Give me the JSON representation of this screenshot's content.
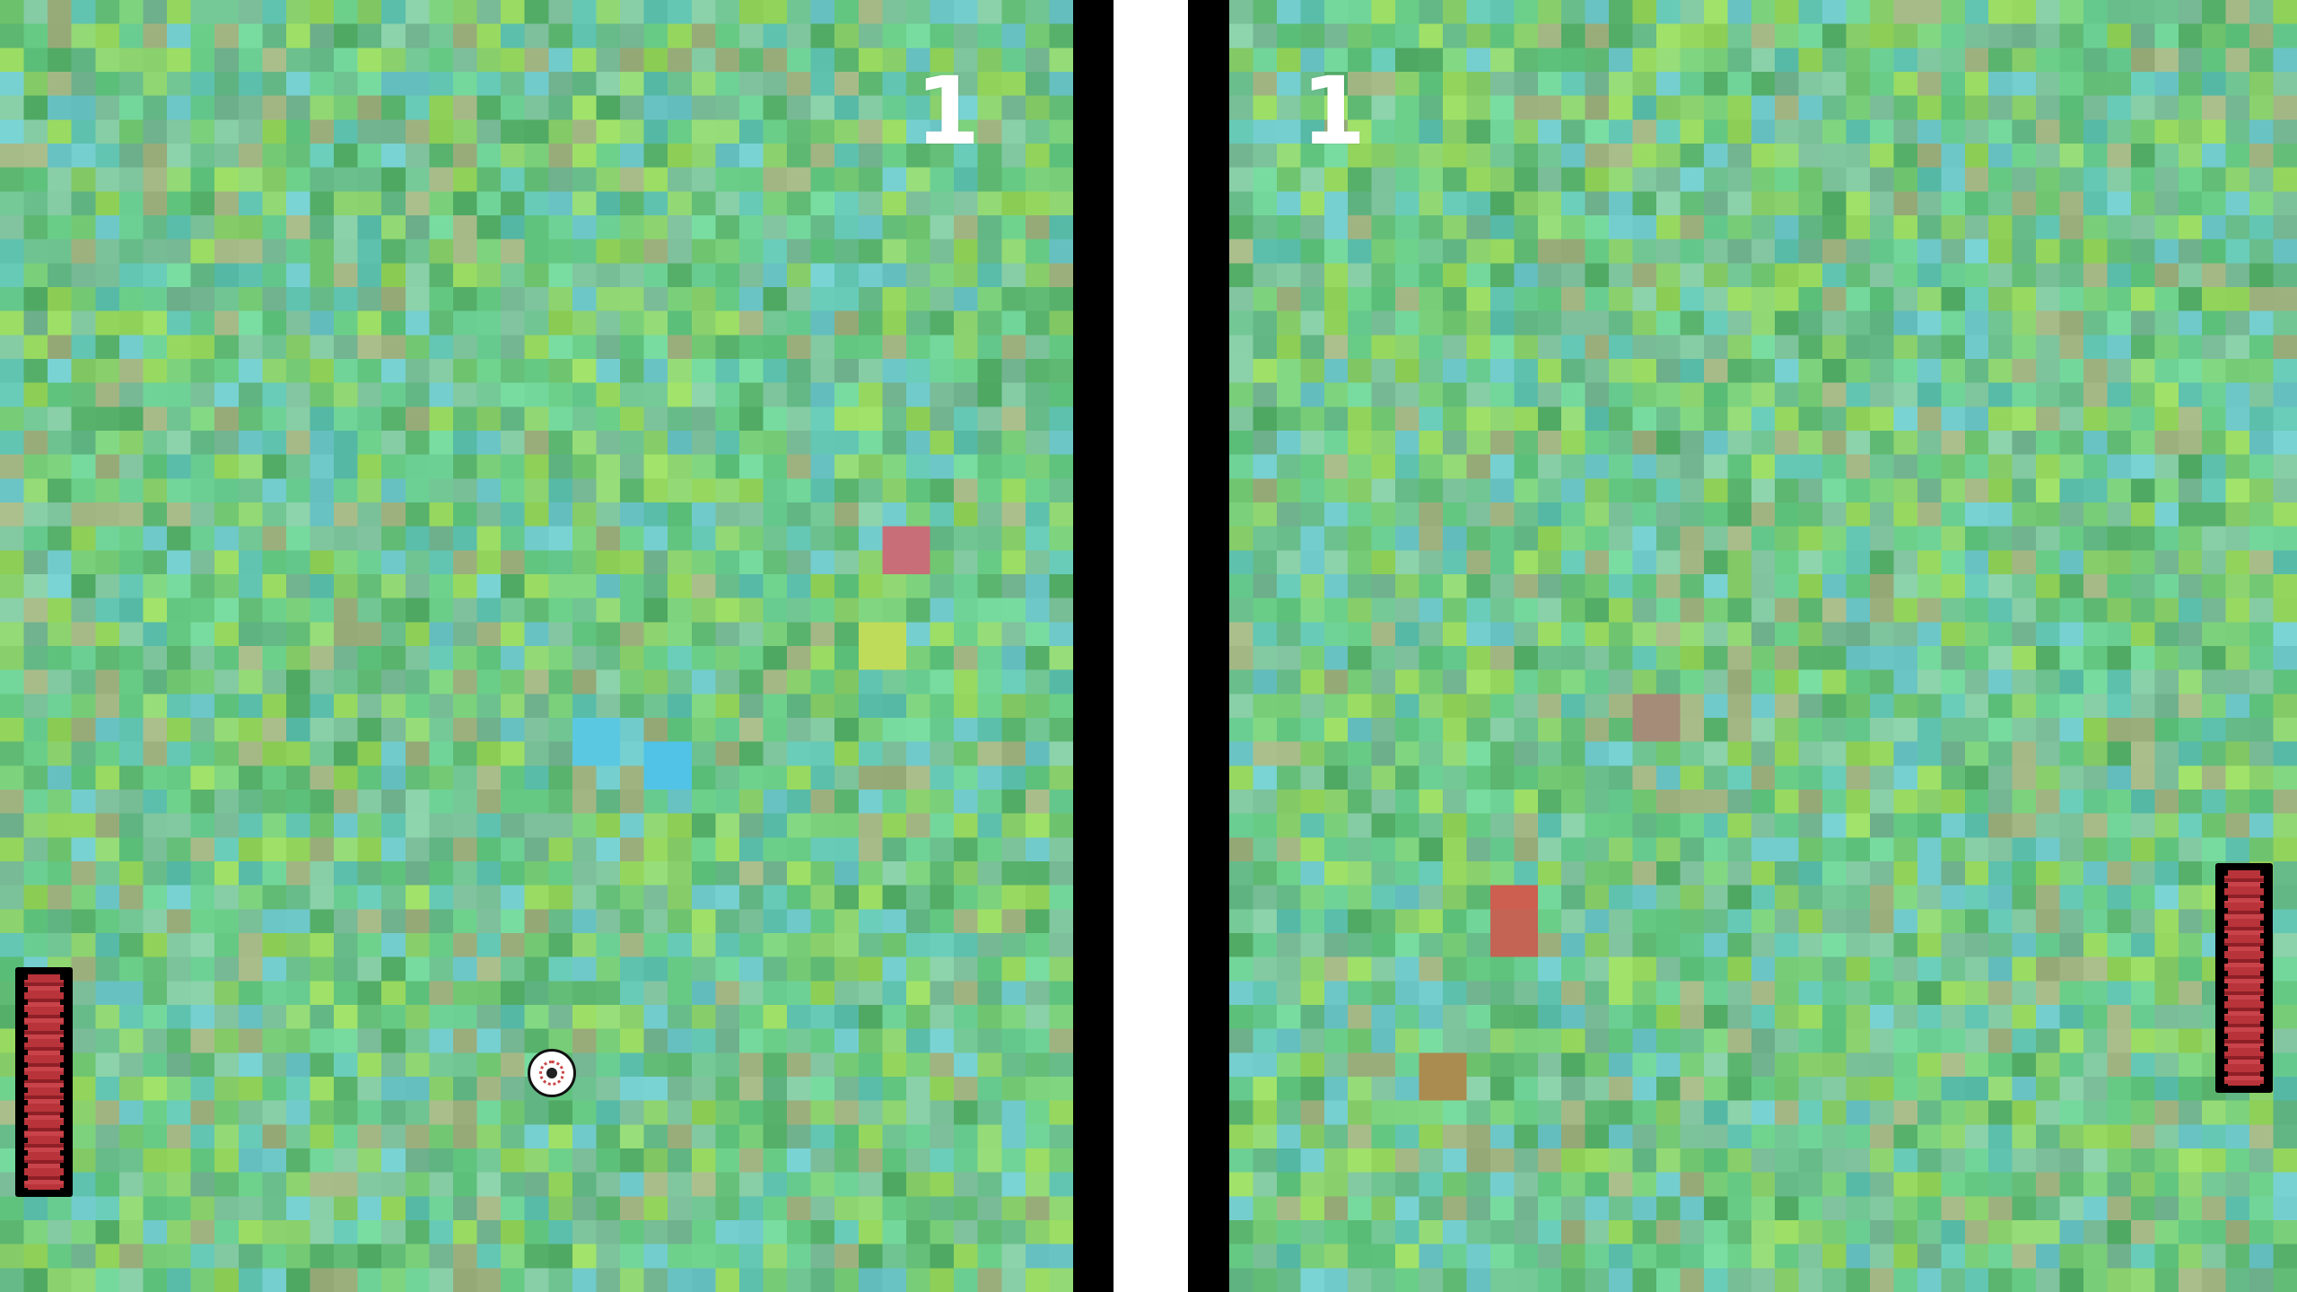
{
  "game": {
    "left_player": {
      "score": "1"
    },
    "right_player": {
      "score": "1"
    }
  },
  "colors": {
    "field_base": "#7fcf86",
    "divider_black": "#000000",
    "divider_white": "#ffffff",
    "score_text": "#ffffff",
    "paddle": "#b8343a"
  },
  "icons": {
    "ball": "eyeball-ball-icon"
  }
}
